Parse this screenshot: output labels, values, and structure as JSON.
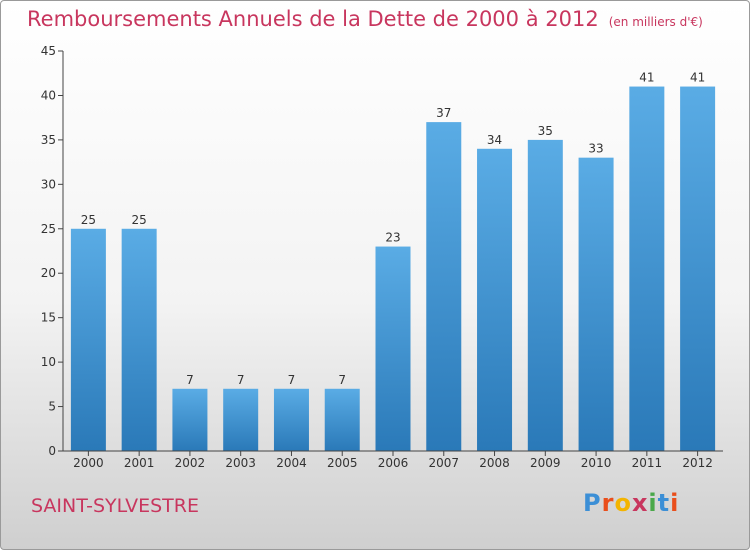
{
  "title": "Remboursements Annuels de la Dette de 2000 à 2012",
  "subtitle": "(en milliers d'€)",
  "city": "SAINT-SYLVESTRE",
  "logo": {
    "letters": [
      "P",
      "r",
      "o",
      "x",
      "i",
      "t",
      "i"
    ],
    "colors": [
      "#3c8fd6",
      "#e94e1b",
      "#f3b400",
      "#c8365e",
      "#4aa84a",
      "#3c8fd6",
      "#e94e1b"
    ]
  },
  "colors": {
    "bar_top": "#5aace5",
    "bar_bottom": "#2a79b8",
    "accent": "#c8365e"
  },
  "chart_data": {
    "type": "bar",
    "categories": [
      "2000",
      "2001",
      "2002",
      "2003",
      "2004",
      "2005",
      "2006",
      "2007",
      "2008",
      "2009",
      "2010",
      "2011",
      "2012"
    ],
    "values": [
      25,
      25,
      7,
      7,
      7,
      7,
      23,
      37,
      34,
      35,
      33,
      41,
      41
    ],
    "ylim": [
      0,
      45
    ],
    "yticks": [
      0,
      5,
      10,
      15,
      20,
      25,
      30,
      35,
      40,
      45
    ],
    "grid": false
  }
}
